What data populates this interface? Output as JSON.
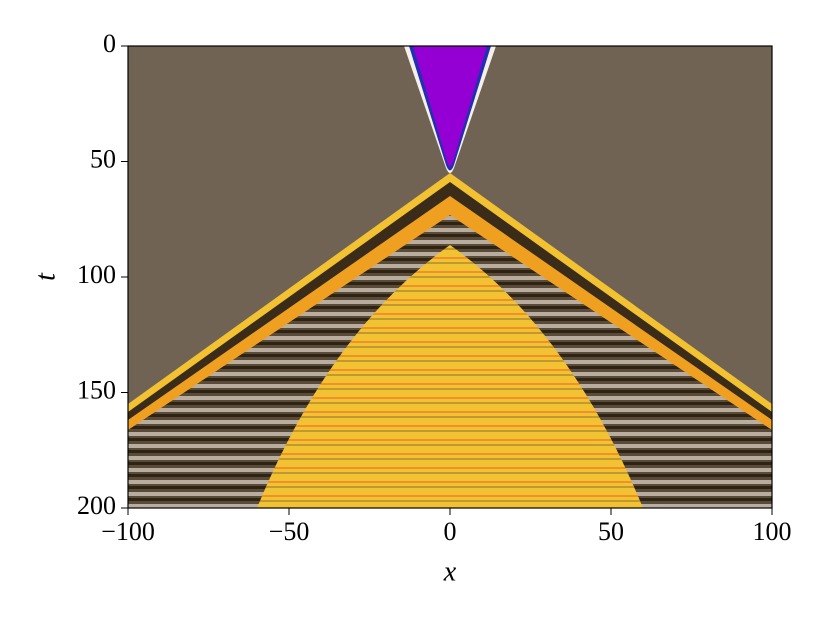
{
  "chart_data": {
    "type": "heatmap",
    "xlabel": "x",
    "ylabel": "t",
    "xlim": [
      -100,
      100
    ],
    "ylim": [
      200,
      0
    ],
    "xticks": [
      {
        "value": -100,
        "label": "−100"
      },
      {
        "value": -50,
        "label": "−50"
      },
      0,
      50,
      100
    ],
    "yticks": [
      0,
      50,
      100,
      150,
      200
    ]
  }
}
